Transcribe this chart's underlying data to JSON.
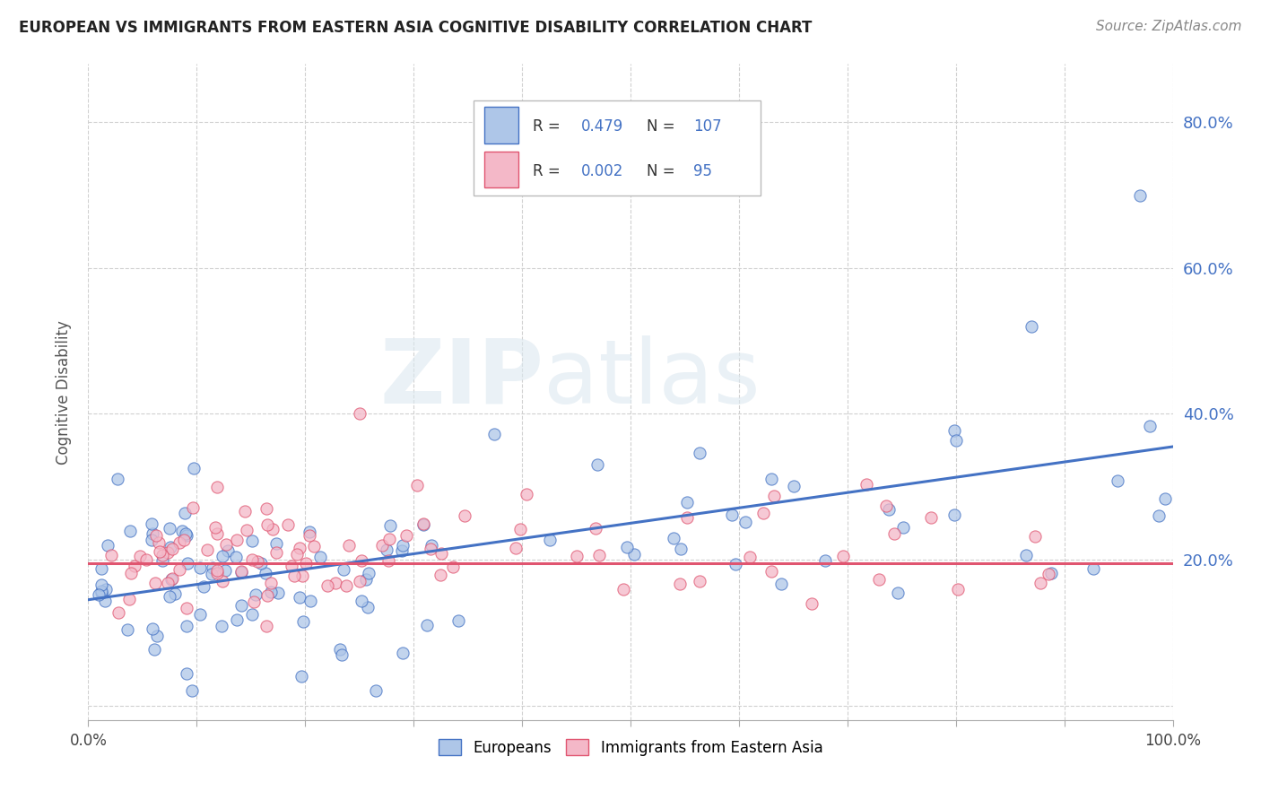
{
  "title": "EUROPEAN VS IMMIGRANTS FROM EASTERN ASIA COGNITIVE DISABILITY CORRELATION CHART",
  "source": "Source: ZipAtlas.com",
  "ylabel": "Cognitive Disability",
  "xlim": [
    0.0,
    1.0
  ],
  "ylim": [
    -0.02,
    0.88
  ],
  "xticks": [
    0.0,
    0.1,
    0.2,
    0.3,
    0.4,
    0.5,
    0.6,
    0.7,
    0.8,
    0.9,
    1.0
  ],
  "xtick_labels": [
    "0.0%",
    "",
    "",
    "",
    "",
    "",
    "",
    "",
    "",
    "",
    "100.0%"
  ],
  "yticks": [
    0.0,
    0.2,
    0.4,
    0.6,
    0.8
  ],
  "ytick_labels": [
    "",
    "20.0%",
    "40.0%",
    "60.0%",
    "80.0%"
  ],
  "european_color": "#aec6e8",
  "immigrant_color": "#f4b8c8",
  "line_blue": "#4472c4",
  "line_pink": "#e05570",
  "R_european": 0.479,
  "N_european": 107,
  "R_immigrant": 0.002,
  "N_immigrant": 95,
  "legend_label_1": "Europeans",
  "legend_label_2": "Immigrants from Eastern Asia",
  "watermark_zip": "ZIP",
  "watermark_atlas": "atlas",
  "background_color": "#ffffff",
  "grid_color": "#d0d0d0",
  "title_color": "#222222",
  "source_color": "#888888",
  "axis_label_color": "#555555",
  "tick_color": "#4472c4"
}
